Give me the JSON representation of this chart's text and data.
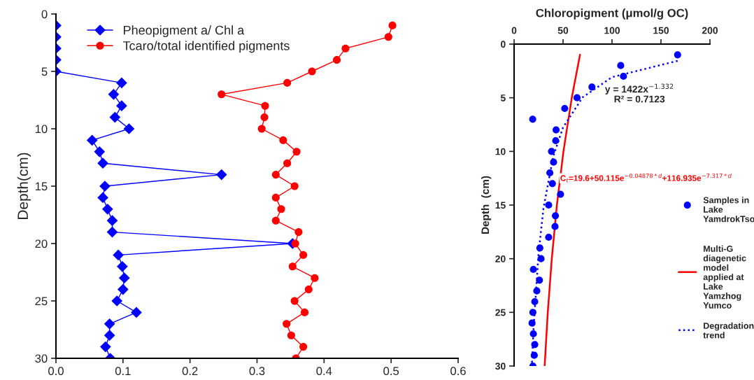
{
  "chart_data": [
    {
      "type": "line",
      "ylabel": "Depth(cm)",
      "xlim": [
        0,
        0.6
      ],
      "ylim": [
        30,
        0
      ],
      "xticks": [
        {
          "value": 0,
          "label": "0.0"
        },
        {
          "value": 0.1,
          "label": "0.1"
        },
        {
          "value": 0.2,
          "label": "0.2"
        },
        {
          "value": 0.3,
          "label": "0.3"
        },
        {
          "value": 0.4,
          "label": "0.4"
        },
        {
          "value": 0.5,
          "label": "0.5"
        },
        {
          "value": 0.6,
          "label": "0.6"
        }
      ],
      "yticks": [
        0,
        5,
        10,
        15,
        20,
        25,
        30
      ],
      "grid": false,
      "legend": "top left",
      "series": [
        {
          "name": "Pheopigment a/ Chl a",
          "color": "#0000ff",
          "marker": "diamond",
          "line_style": "solid",
          "x": [
            0,
            0,
            0,
            0,
            0,
            0.098,
            0.086,
            0.098,
            0.088,
            0.109,
            0.054,
            0.065,
            0.07,
            0.247,
            0.073,
            0.07,
            0.077,
            0.084,
            0.084,
            0.353,
            0.093,
            0.099,
            0.102,
            0.1,
            0.091,
            0.12,
            0.08,
            0.08,
            0.074,
            0.081
          ],
          "values": [
            1,
            2,
            3,
            4,
            5,
            6,
            7,
            8,
            9,
            10,
            11,
            12,
            13,
            14,
            15,
            16,
            17,
            18,
            19,
            20,
            21,
            22,
            23,
            24,
            25,
            26,
            27,
            28,
            29,
            30
          ]
        },
        {
          "name": "Tcaro/total identified pigments",
          "color": "#ff0000",
          "marker": "circle",
          "line_style": "solid",
          "x": [
            0.502,
            0.496,
            0.432,
            0.419,
            0.382,
            0.345,
            0.247,
            0.312,
            0.311,
            0.307,
            0.339,
            0.359,
            0.345,
            0.328,
            0.356,
            0.328,
            0.336,
            0.328,
            0.362,
            0.357,
            0.369,
            0.353,
            0.386,
            0.377,
            0.356,
            0.371,
            0.344,
            0.351,
            0.369,
            0.358
          ],
          "values": [
            1,
            2,
            3,
            4,
            5,
            6,
            7,
            8,
            9,
            10,
            11,
            12,
            13,
            14,
            15,
            16,
            17,
            18,
            19,
            20,
            21,
            22,
            23,
            24,
            25,
            26,
            27,
            28,
            29,
            30
          ]
        }
      ]
    },
    {
      "type": "scatter",
      "xlabel": "Chloropigment (μmol/g OC)",
      "ylabel": "Depth  (cm)",
      "xlim": [
        0,
        200
      ],
      "xticks": [
        0,
        50,
        100,
        150,
        200
      ],
      "ylim": [
        30,
        0
      ],
      "yticks": [
        0,
        5,
        10,
        15,
        20,
        25,
        30
      ],
      "grid": false,
      "legend": "bottom right",
      "annotations": [
        "y = 1422x$^{−1.332}$",
        "R² = 0.7123",
        {
          "text": "C$_{t}$=19.6+50.115e$^{−0.04878*d}$+116.935e$^{−7.317*d}$",
          "x": 47,
          "y": 12.5
        }
      ],
      "series": [
        {
          "name": "Samples in Lake YamdrokTso",
          "type": "scatter",
          "color": "#0000ff",
          "marker": "circle",
          "x": [
            167,
            108.9,
            111.7,
            79.5,
            64.3,
            51.7,
            19,
            42.9,
            42.5,
            38.2,
            40.3,
            36.5,
            39.1,
            47.4,
            35.3,
            42.2,
            41.8,
            35.3,
            26.3,
            27.5,
            19.7,
            25.9,
            23.2,
            21.1,
            19.2,
            18.3,
            19.7,
            21.1,
            20.6,
            19.2
          ],
          "values": [
            1,
            2,
            3,
            4,
            5,
            6,
            7,
            8,
            9,
            10,
            11,
            12,
            13,
            14,
            15,
            16,
            17,
            18,
            19,
            20,
            21,
            22,
            23,
            24,
            25,
            26,
            27,
            28,
            29,
            30
          ]
        },
        {
          "name": "Multi-G diagenetic model applied at Lake Yamzhog Yumco",
          "type": "line",
          "color": "#ff0000",
          "line_style": "solid",
          "x": [
            67.3,
            58.9,
            50.4,
            43.7,
            38.5,
            34.4,
            31.2
          ],
          "values": [
            1,
            5,
            10,
            15,
            20,
            25,
            30
          ]
        },
        {
          "name": "Degradation trend",
          "type": "line",
          "color": "#0000ff",
          "line_style": "dotted",
          "x": [
            167,
            100,
            70,
            50,
            40,
            30,
            25,
            20,
            18.2
          ],
          "values": [
            1.56,
            3.08,
            4.96,
            7.77,
            10.46,
            15.3,
            19.5,
            26.3,
            29.8
          ]
        }
      ]
    }
  ]
}
